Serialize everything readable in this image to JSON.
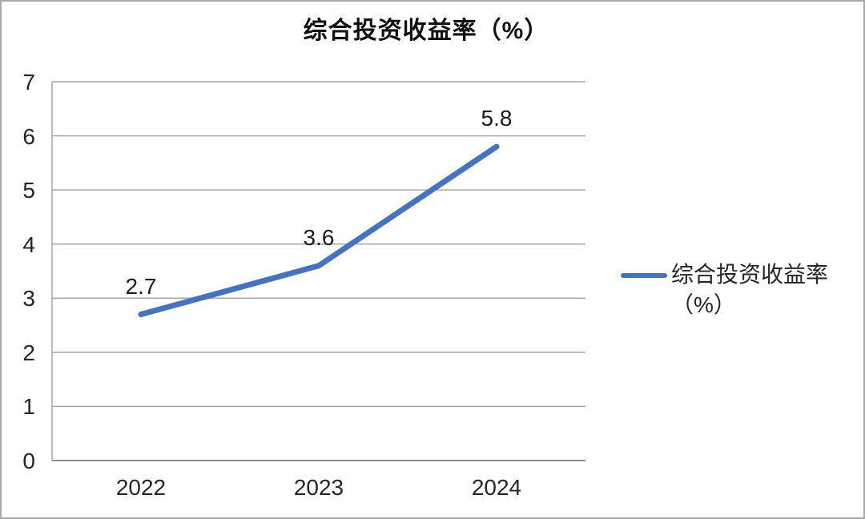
{
  "chart_data": {
    "type": "line",
    "title": "综合投资收益率（%）",
    "categories": [
      "2022",
      "2023",
      "2024"
    ],
    "series": [
      {
        "name": "综合投资收益率（%）",
        "values": [
          2.7,
          3.6,
          5.8
        ],
        "data_labels": [
          "2.7",
          "3.6",
          "5.8"
        ],
        "color": "#4472C4"
      }
    ],
    "xlabel": "",
    "ylabel": "",
    "ylim": [
      0,
      7
    ],
    "yticks": [
      "0",
      "1",
      "2",
      "3",
      "4",
      "5",
      "6",
      "7"
    ],
    "grid": true,
    "legend_position": "right",
    "legend_label": "综合投资收益率（%）",
    "colors": {
      "line": "#4472C4",
      "gridline": "#a6a6a6",
      "axis": "#8c8c8c",
      "tick_text": "#262626",
      "title_text": "#111111",
      "frame_border": "#a9a9a9",
      "background": "#ffffff"
    }
  }
}
